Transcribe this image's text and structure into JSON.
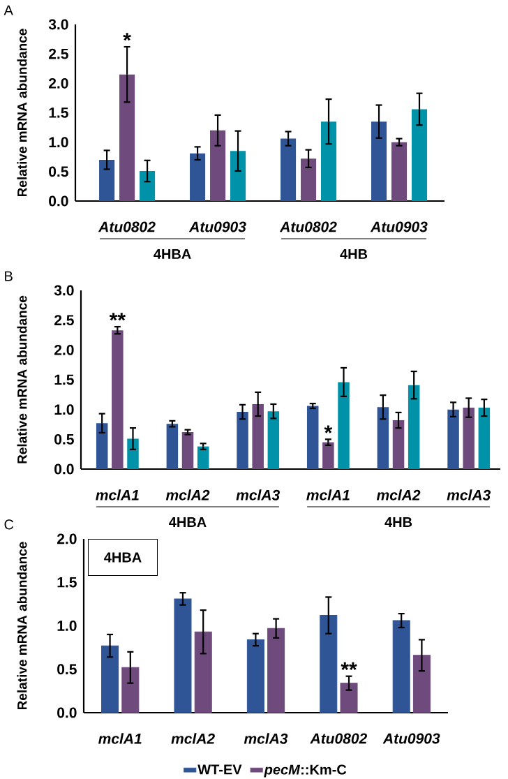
{
  "chart_data": [
    {
      "type": "bar",
      "title": "A",
      "ylabel": "Relative mRNA abundance",
      "categories": [
        "Atu0802",
        "Atu0903",
        "Atu0802",
        "Atu0903"
      ],
      "series": [
        {
          "color": "#2f5597",
          "values": [
            0.7,
            0.81,
            1.06,
            1.35
          ],
          "errors": [
            0.16,
            0.11,
            0.12,
            0.28
          ]
        },
        {
          "color": "#6f4a7c",
          "values": [
            2.15,
            1.2,
            0.72,
            1.0
          ],
          "errors": [
            0.47,
            0.26,
            0.15,
            0.06
          ]
        },
        {
          "color": "#0092a8",
          "values": [
            0.51,
            0.85,
            1.35,
            1.56
          ],
          "errors": [
            0.18,
            0.34,
            0.38,
            0.27
          ]
        }
      ],
      "ylim": [
        0,
        3
      ],
      "yticks": [
        {
          "value": 0,
          "label": "0.0"
        },
        0.5,
        {
          "value": 1,
          "label": "1.0"
        },
        1.5,
        {
          "value": 2,
          "label": "2.0"
        },
        2.5,
        {
          "value": 3,
          "label": "3.0"
        }
      ],
      "annotations": [
        "4HBA",
        "4HB",
        "*"
      ]
    },
    {
      "type": "bar",
      "title": "B",
      "ylabel": "Relative mRNA abundance",
      "categories": [
        "mclA1",
        "mclA2",
        "mclA3",
        "mclA1",
        "mclA2",
        "mclA3"
      ],
      "series": [
        {
          "color": "#2f5597",
          "values": [
            0.77,
            0.76,
            0.96,
            1.06,
            1.04,
            1.0
          ],
          "errors": [
            0.16,
            0.05,
            0.12,
            0.04,
            0.2,
            0.12
          ]
        },
        {
          "color": "#6f4a7c",
          "values": [
            2.33,
            0.62,
            1.09,
            0.45,
            0.82,
            1.03
          ],
          "errors": [
            0.06,
            0.04,
            0.2,
            0.05,
            0.13,
            0.16
          ]
        },
        {
          "color": "#0092a8",
          "values": [
            0.51,
            0.38,
            0.97,
            1.46,
            1.41,
            1.03
          ],
          "errors": [
            0.18,
            0.05,
            0.12,
            0.24,
            0.23,
            0.14
          ]
        }
      ],
      "ylim": [
        0,
        3
      ],
      "yticks": [
        {
          "value": 0,
          "label": "0.0"
        },
        0.5,
        {
          "value": 1,
          "label": "1.0"
        },
        1.5,
        {
          "value": 2,
          "label": "2.0"
        },
        2.5,
        {
          "value": 3,
          "label": "3.0"
        }
      ],
      "annotations": [
        "4HBA",
        "4HB",
        "**",
        "*"
      ]
    },
    {
      "type": "bar",
      "title": "C",
      "ylabel": "Relative mRNA abundance",
      "categories": [
        "mclA1",
        "mclA2",
        "mclA3",
        "Atu0802",
        "Atu0903"
      ],
      "series": [
        {
          "name": "WT-EV",
          "color": "#2f5597",
          "values": [
            0.77,
            1.31,
            0.84,
            1.12,
            1.06
          ],
          "errors": [
            0.13,
            0.07,
            0.07,
            0.21,
            0.08
          ]
        },
        {
          "name": "*pecM*::Km-C",
          "color": "#6f4a7c",
          "values": [
            0.52,
            0.93,
            0.97,
            0.34,
            0.66
          ],
          "errors": [
            0.18,
            0.25,
            0.11,
            0.08,
            0.18
          ]
        }
      ],
      "ylim": [
        0,
        2
      ],
      "yticks": [
        {
          "value": 0,
          "label": "0.0"
        },
        0.5,
        {
          "value": 1,
          "label": "1.0"
        },
        1.5,
        {
          "value": 2,
          "label": "2.0"
        }
      ],
      "legend": "bottom",
      "annotations": [
        "4HBA",
        "**"
      ]
    }
  ]
}
